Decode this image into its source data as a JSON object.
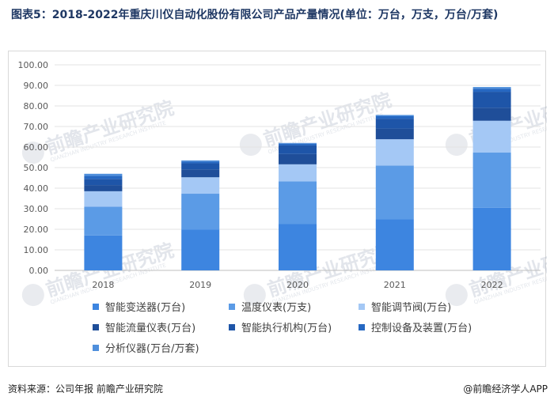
{
  "title": "图表5：2018-2022年重庆川仪自动化股份有限公司产品产量情况(单位：万台，万支，万台/万套)",
  "footer": {
    "source": "资料来源：公司年报 前瞻产业研究院",
    "brand": "@前瞻经济学人APP"
  },
  "watermark": {
    "text": "前瞻产业研究院",
    "sub": "QIANZHAN INDUSTRY RESEARCH INSTITUTE"
  },
  "chart_data": {
    "type": "bar",
    "stacked": true,
    "categories": [
      "2018",
      "2019",
      "2020",
      "2021",
      "2022"
    ],
    "ylim": [
      0,
      100
    ],
    "yticks": [
      "0.00",
      "10.00",
      "20.00",
      "30.00",
      "40.00",
      "50.00",
      "60.00",
      "70.00",
      "80.00",
      "90.00",
      "100.00"
    ],
    "grid": true,
    "legend_position": "bottom",
    "series": [
      {
        "name": "智能变送器(万台)",
        "color": "#3d85e0",
        "values": [
          17.0,
          19.8,
          22.5,
          24.8,
          30.5
        ]
      },
      {
        "name": "温度仪表(万支)",
        "color": "#5b9be6",
        "values": [
          14.0,
          17.5,
          20.8,
          26.2,
          26.8
        ]
      },
      {
        "name": "智能调节阀(万台)",
        "color": "#a4c8f5",
        "values": [
          7.5,
          8.0,
          8.3,
          12.8,
          15.5
        ]
      },
      {
        "name": "智能流量仪表(万台)",
        "color": "#1f4e99",
        "values": [
          3.0,
          3.8,
          5.0,
          5.2,
          6.3
        ]
      },
      {
        "name": "智能执行机构(万台)",
        "color": "#1e55a8",
        "values": [
          3.0,
          3.0,
          4.2,
          4.8,
          7.8
        ]
      },
      {
        "name": "控制设备及装置(万台)",
        "color": "#2668c2",
        "values": [
          1.5,
          0.9,
          0.8,
          1.2,
          1.5
        ]
      },
      {
        "name": "分析仪器(万台/万套)",
        "color": "#4f8fdc",
        "values": [
          1.0,
          0.5,
          0.4,
          0.6,
          0.8
        ]
      }
    ]
  }
}
